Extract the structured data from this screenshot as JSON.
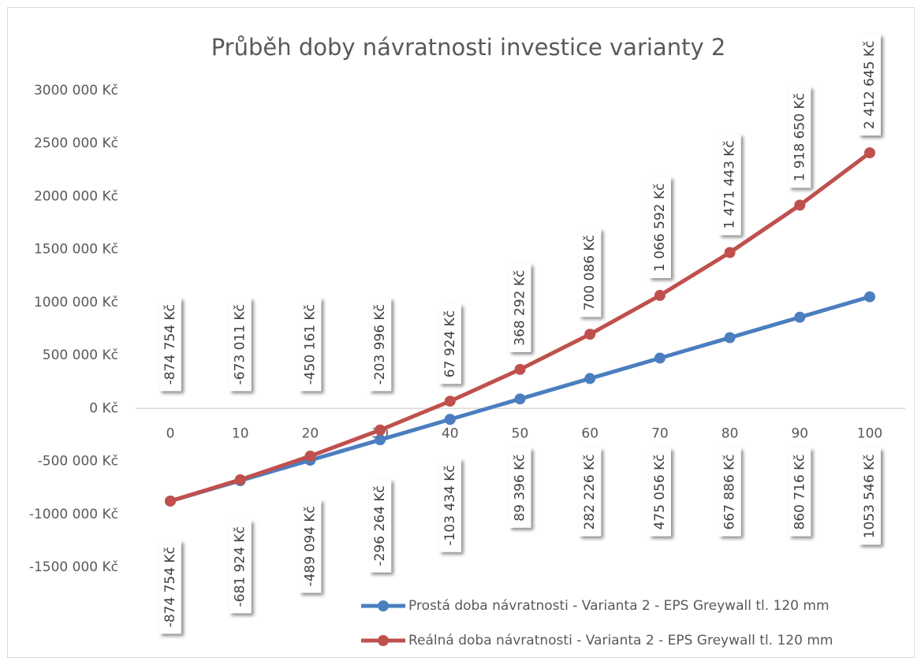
{
  "chart_data": {
    "type": "line",
    "title": "Průběh doby návratnosti investice varianty 2",
    "categories": [
      "0",
      "10",
      "20",
      "30",
      "40",
      "50",
      "60",
      "70",
      "80",
      "90",
      "100"
    ],
    "series": [
      {
        "name": "Prostá doba návratnosti - Varianta 2 - EPS Greywall tl. 120 mm",
        "color": "#4a7ebf",
        "label_position": "below",
        "values": [
          -874754,
          -681924,
          -489094,
          -296264,
          -103434,
          89396,
          282226,
          475056,
          667886,
          860716,
          1053546
        ],
        "value_labels": [
          "-874 754 Kč",
          "-681 924 Kč",
          "-489 094 Kč",
          "-296 264 Kč",
          "-103 434 Kč",
          "89 396 Kč",
          "282 226 Kč",
          "475 056 Kč",
          "667 886 Kč",
          "860 716 Kč",
          "1053 546 Kč"
        ]
      },
      {
        "name": "Reálná doba návratnosti - Varianta 2 - EPS Greywall tl. 120 mm",
        "color": "#c0504d",
        "label_position": "above",
        "values": [
          -874754,
          -673011,
          -450161,
          -203996,
          67924,
          368292,
          700086,
          1066592,
          1471443,
          1918650,
          2412645
        ],
        "value_labels": [
          "-874 754 Kč",
          "-673 011 Kč",
          "-450 161 Kč",
          "-203 996 Kč",
          "67 924 Kč",
          "368 292 Kč",
          "700 086 Kč",
          "1 066 592 Kč",
          "1 471 443 Kč",
          "1 918 650 Kč",
          "2 412 645 Kč"
        ]
      }
    ],
    "ylim": [
      -1500000,
      3000000
    ],
    "yticks": [
      {
        "value": -1500000,
        "label": "-1500 000 Kč"
      },
      {
        "value": -1000000,
        "label": "-1000 000 Kč"
      },
      {
        "value": -500000,
        "label": "-500 000 Kč"
      },
      {
        "value": 0,
        "label": "0 Kč"
      },
      {
        "value": 500000,
        "label": "500 000 Kč"
      },
      {
        "value": 1000000,
        "label": "1000 000 Kč"
      },
      {
        "value": 1500000,
        "label": "1500 000 Kč"
      },
      {
        "value": 2000000,
        "label": "2000 000 Kč"
      },
      {
        "value": 2500000,
        "label": "2500 000 Kč"
      },
      {
        "value": 3000000,
        "label": "3000 000 Kč"
      }
    ],
    "grid": false,
    "legend": "lower right"
  }
}
